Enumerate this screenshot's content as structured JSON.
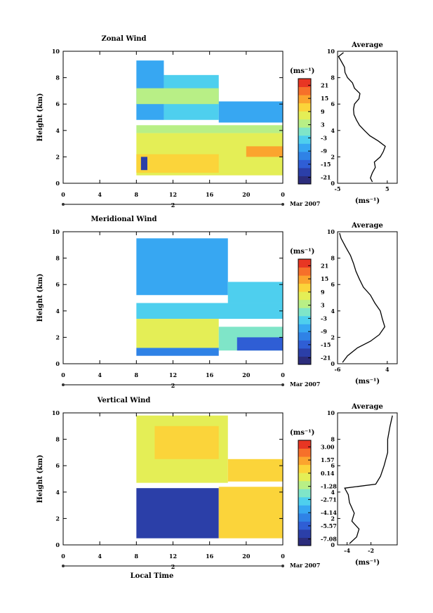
{
  "chart_data": [
    {
      "type": "heatmap",
      "title": "Zonal Wind",
      "ylabel": "Height (km)",
      "xlim": [
        0,
        24
      ],
      "ylim": [
        0,
        10
      ],
      "xticks": [
        "0",
        "4",
        "8",
        "12",
        "16",
        "20",
        "0"
      ],
      "yticks": [
        "0",
        "2",
        "4",
        "6",
        "8",
        "10"
      ],
      "date_marker": "2",
      "date_label": "Mar 2007",
      "colorbar": {
        "unit_label": "(ms⁻¹)",
        "ticks": [
          "-21",
          "-15",
          "-9",
          "-3",
          "3",
          "9",
          "15",
          "21"
        ],
        "range": [
          -24,
          24
        ]
      },
      "average": {
        "title": "Average",
        "xlabel": "(ms⁻¹)",
        "xticks": [
          "-5",
          "5"
        ],
        "xlim": [
          -5,
          7
        ],
        "profile": [
          [
            2.0,
            0.1
          ],
          [
            1.6,
            0.4
          ],
          [
            2.0,
            0.8
          ],
          [
            2.6,
            1.2
          ],
          [
            2.4,
            1.6
          ],
          [
            3.6,
            2.0
          ],
          [
            4.2,
            2.4
          ],
          [
            4.6,
            2.8
          ],
          [
            3.2,
            3.2
          ],
          [
            1.5,
            3.6
          ],
          [
            0.4,
            4.0
          ],
          [
            -0.6,
            4.4
          ],
          [
            -1.2,
            4.8
          ],
          [
            -1.7,
            5.2
          ],
          [
            -1.8,
            5.6
          ],
          [
            -1.6,
            6.0
          ],
          [
            -0.7,
            6.4
          ],
          [
            -0.5,
            6.8
          ],
          [
            -1.6,
            7.2
          ],
          [
            -2.0,
            7.6
          ],
          [
            -3.0,
            8.0
          ],
          [
            -3.5,
            8.4
          ],
          [
            -3.6,
            8.8
          ],
          [
            -4.2,
            9.2
          ],
          [
            -4.8,
            9.6
          ],
          [
            -3.8,
            9.9
          ]
        ]
      },
      "regions": [
        {
          "t": [
            8,
            11
          ],
          "h": [
            4.8,
            9.3
          ],
          "v": -6
        },
        {
          "t": [
            11,
            17
          ],
          "h": [
            4.8,
            8.2
          ],
          "v": -4
        },
        {
          "t": [
            8,
            17
          ],
          "h": [
            6.0,
            7.2
          ],
          "v": 2
        },
        {
          "t": [
            17,
            24
          ],
          "h": [
            4.6,
            6.2
          ],
          "v": -6
        },
        {
          "t": [
            8,
            24
          ],
          "h": [
            3.8,
            4.4
          ],
          "v": 3
        },
        {
          "t": [
            8,
            24
          ],
          "h": [
            0.6,
            3.8
          ],
          "v": 6
        },
        {
          "t": [
            8,
            17
          ],
          "h": [
            0.8,
            2.2
          ],
          "v": 12
        },
        {
          "t": [
            8.5,
            9.2
          ],
          "h": [
            1.0,
            2.0
          ],
          "v": -20
        },
        {
          "t": [
            20,
            24
          ],
          "h": [
            2.0,
            2.8
          ],
          "v": 14
        }
      ]
    },
    {
      "type": "heatmap",
      "title": "Meridional Wind",
      "ylabel": "Height (km)",
      "xlim": [
        0,
        24
      ],
      "ylim": [
        0,
        10
      ],
      "xticks": [
        "0",
        "4",
        "8",
        "12",
        "16",
        "20",
        "0"
      ],
      "yticks": [
        "0",
        "2",
        "4",
        "6",
        "8",
        "10"
      ],
      "date_marker": "2",
      "date_label": "Mar 2007",
      "colorbar": {
        "unit_label": "(ms⁻¹)",
        "ticks": [
          "-21",
          "-15",
          "-9",
          "-3",
          "3",
          "9",
          "15",
          "21"
        ],
        "range": [
          -24,
          24
        ]
      },
      "average": {
        "title": "Average",
        "xlabel": "(ms⁻¹)",
        "xticks": [
          "-6",
          "4"
        ],
        "xlim": [
          -6,
          6
        ],
        "profile": [
          [
            -5.0,
            0.1
          ],
          [
            -4.0,
            0.6
          ],
          [
            -2.0,
            1.2
          ],
          [
            0.6,
            1.7
          ],
          [
            2.4,
            2.2
          ],
          [
            3.5,
            2.8
          ],
          [
            3.0,
            3.4
          ],
          [
            2.6,
            4.0
          ],
          [
            1.5,
            4.6
          ],
          [
            0.6,
            5.2
          ],
          [
            -0.8,
            5.8
          ],
          [
            -1.6,
            6.4
          ],
          [
            -2.3,
            7.0
          ],
          [
            -2.8,
            7.6
          ],
          [
            -3.4,
            8.2
          ],
          [
            -4.3,
            8.8
          ],
          [
            -5.3,
            9.5
          ],
          [
            -5.6,
            9.9
          ]
        ]
      },
      "regions": [
        {
          "t": [
            8,
            18
          ],
          "h": [
            5.2,
            9.5
          ],
          "v": -9
        },
        {
          "t": [
            18,
            24
          ],
          "h": [
            4.6,
            6.2
          ],
          "v": -3
        },
        {
          "t": [
            8,
            24
          ],
          "h": [
            3.4,
            4.6
          ],
          "v": -3
        },
        {
          "t": [
            8,
            17
          ],
          "h": [
            1.2,
            3.4
          ],
          "v": 6
        },
        {
          "t": [
            17,
            24
          ],
          "h": [
            1.0,
            2.8
          ],
          "v": 0
        },
        {
          "t": [
            19,
            24
          ],
          "h": [
            1.0,
            2.0
          ],
          "v": -16
        },
        {
          "t": [
            8,
            17
          ],
          "h": [
            0.6,
            1.2
          ],
          "v": -12
        }
      ]
    },
    {
      "type": "heatmap",
      "title": "Vertical Wind",
      "xlabel": "Local Time",
      "ylabel": "Height (km)",
      "xlim": [
        0,
        24
      ],
      "ylim": [
        0,
        10
      ],
      "xticks": [
        "0",
        "4",
        "8",
        "12",
        "16",
        "20",
        "0"
      ],
      "yticks": [
        "0",
        "2",
        "4",
        "6",
        "8",
        "10"
      ],
      "date_marker": "2",
      "date_label": "Mar 2007",
      "colorbar": {
        "unit_label": "(ms⁻¹)",
        "ticks": [
          "-7.08",
          "-5.57",
          "-4.14",
          "-2.71",
          "-1.28",
          "0.14",
          "1.57",
          "3.00"
        ],
        "range": [
          -7.8,
          3.7
        ]
      },
      "average": {
        "title": "Average",
        "xlabel": "(ms⁻¹)",
        "xticks": [
          "-4",
          "-2"
        ],
        "xlim": [
          -4.8,
          0.2
        ],
        "profile": [
          [
            -3.8,
            0.1
          ],
          [
            -3.2,
            0.6
          ],
          [
            -3.0,
            1.2
          ],
          [
            -3.6,
            1.8
          ],
          [
            -3.4,
            2.4
          ],
          [
            -3.8,
            3.2
          ],
          [
            -3.9,
            3.8
          ],
          [
            -4.2,
            4.3
          ],
          [
            -1.6,
            4.6
          ],
          [
            -1.2,
            5.2
          ],
          [
            -0.9,
            6.0
          ],
          [
            -0.6,
            7.0
          ],
          [
            -0.6,
            8.0
          ],
          [
            -0.4,
            9.0
          ],
          [
            -0.2,
            9.8
          ]
        ]
      },
      "regions": [
        {
          "t": [
            8,
            18
          ],
          "h": [
            4.7,
            9.8
          ],
          "v": 0.0
        },
        {
          "t": [
            10,
            17
          ],
          "h": [
            6.5,
            9.0
          ],
          "v": 0.5
        },
        {
          "t": [
            18,
            24
          ],
          "h": [
            4.8,
            6.5
          ],
          "v": 0.8
        },
        {
          "t": [
            8,
            17
          ],
          "h": [
            0.5,
            4.3
          ],
          "v": -6.5
        },
        {
          "t": [
            17,
            24
          ],
          "h": [
            0.5,
            4.4
          ],
          "v": 0.4
        }
      ]
    }
  ]
}
